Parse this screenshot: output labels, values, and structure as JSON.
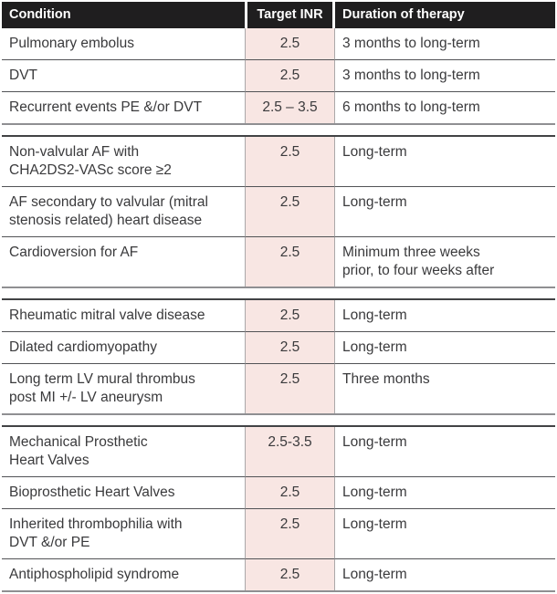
{
  "colors": {
    "header_bg": "#1f1e1f",
    "header_text": "#ffffff",
    "inr_cell_bg": "#f8e6e3",
    "body_text": "#3a3a3c"
  },
  "table": {
    "columns": [
      "Condition",
      "Target INR",
      "Duration of therapy"
    ],
    "sections": [
      {
        "rows": [
          {
            "condition": "Pulmonary embolus",
            "target_inr": "2.5",
            "duration": "3 months to long-term"
          },
          {
            "condition": "DVT",
            "target_inr": "2.5",
            "duration": "3 months to long-term"
          },
          {
            "condition": "Recurrent events PE &/or DVT",
            "target_inr": "2.5 – 3.5",
            "duration": "6 months to long-term"
          }
        ]
      },
      {
        "rows": [
          {
            "condition": "Non-valvular AF with\nCHA2DS2-VASc score ≥2",
            "target_inr": "2.5",
            "duration": "Long-term"
          },
          {
            "condition": "AF secondary to valvular (mitral\nstenosis related) heart disease",
            "target_inr": "2.5",
            "duration": "Long-term"
          },
          {
            "condition": "Cardioversion for AF",
            "target_inr": "2.5",
            "duration": "Minimum three weeks\nprior, to four weeks after"
          }
        ]
      },
      {
        "rows": [
          {
            "condition": "Rheumatic mitral valve disease",
            "target_inr": "2.5",
            "duration": "Long-term"
          },
          {
            "condition": "Dilated cardiomyopathy",
            "target_inr": "2.5",
            "duration": "Long-term"
          },
          {
            "condition": "Long term LV mural thrombus\npost MI +/- LV aneurysm",
            "target_inr": "2.5",
            "duration": "Three months"
          }
        ]
      },
      {
        "rows": [
          {
            "condition": "Mechanical Prosthetic\nHeart Valves",
            "target_inr": "2.5-3.5",
            "duration": "Long-term"
          },
          {
            "condition": "Bioprosthetic Heart Valves",
            "target_inr": "2.5",
            "duration": "Long-term"
          },
          {
            "condition": "Inherited thrombophilia with\nDVT &/or PE",
            "target_inr": "2.5",
            "duration": "Long-term"
          },
          {
            "condition": "Antiphospholipid syndrome",
            "target_inr": "2.5",
            "duration": "Long-term"
          }
        ]
      }
    ]
  }
}
